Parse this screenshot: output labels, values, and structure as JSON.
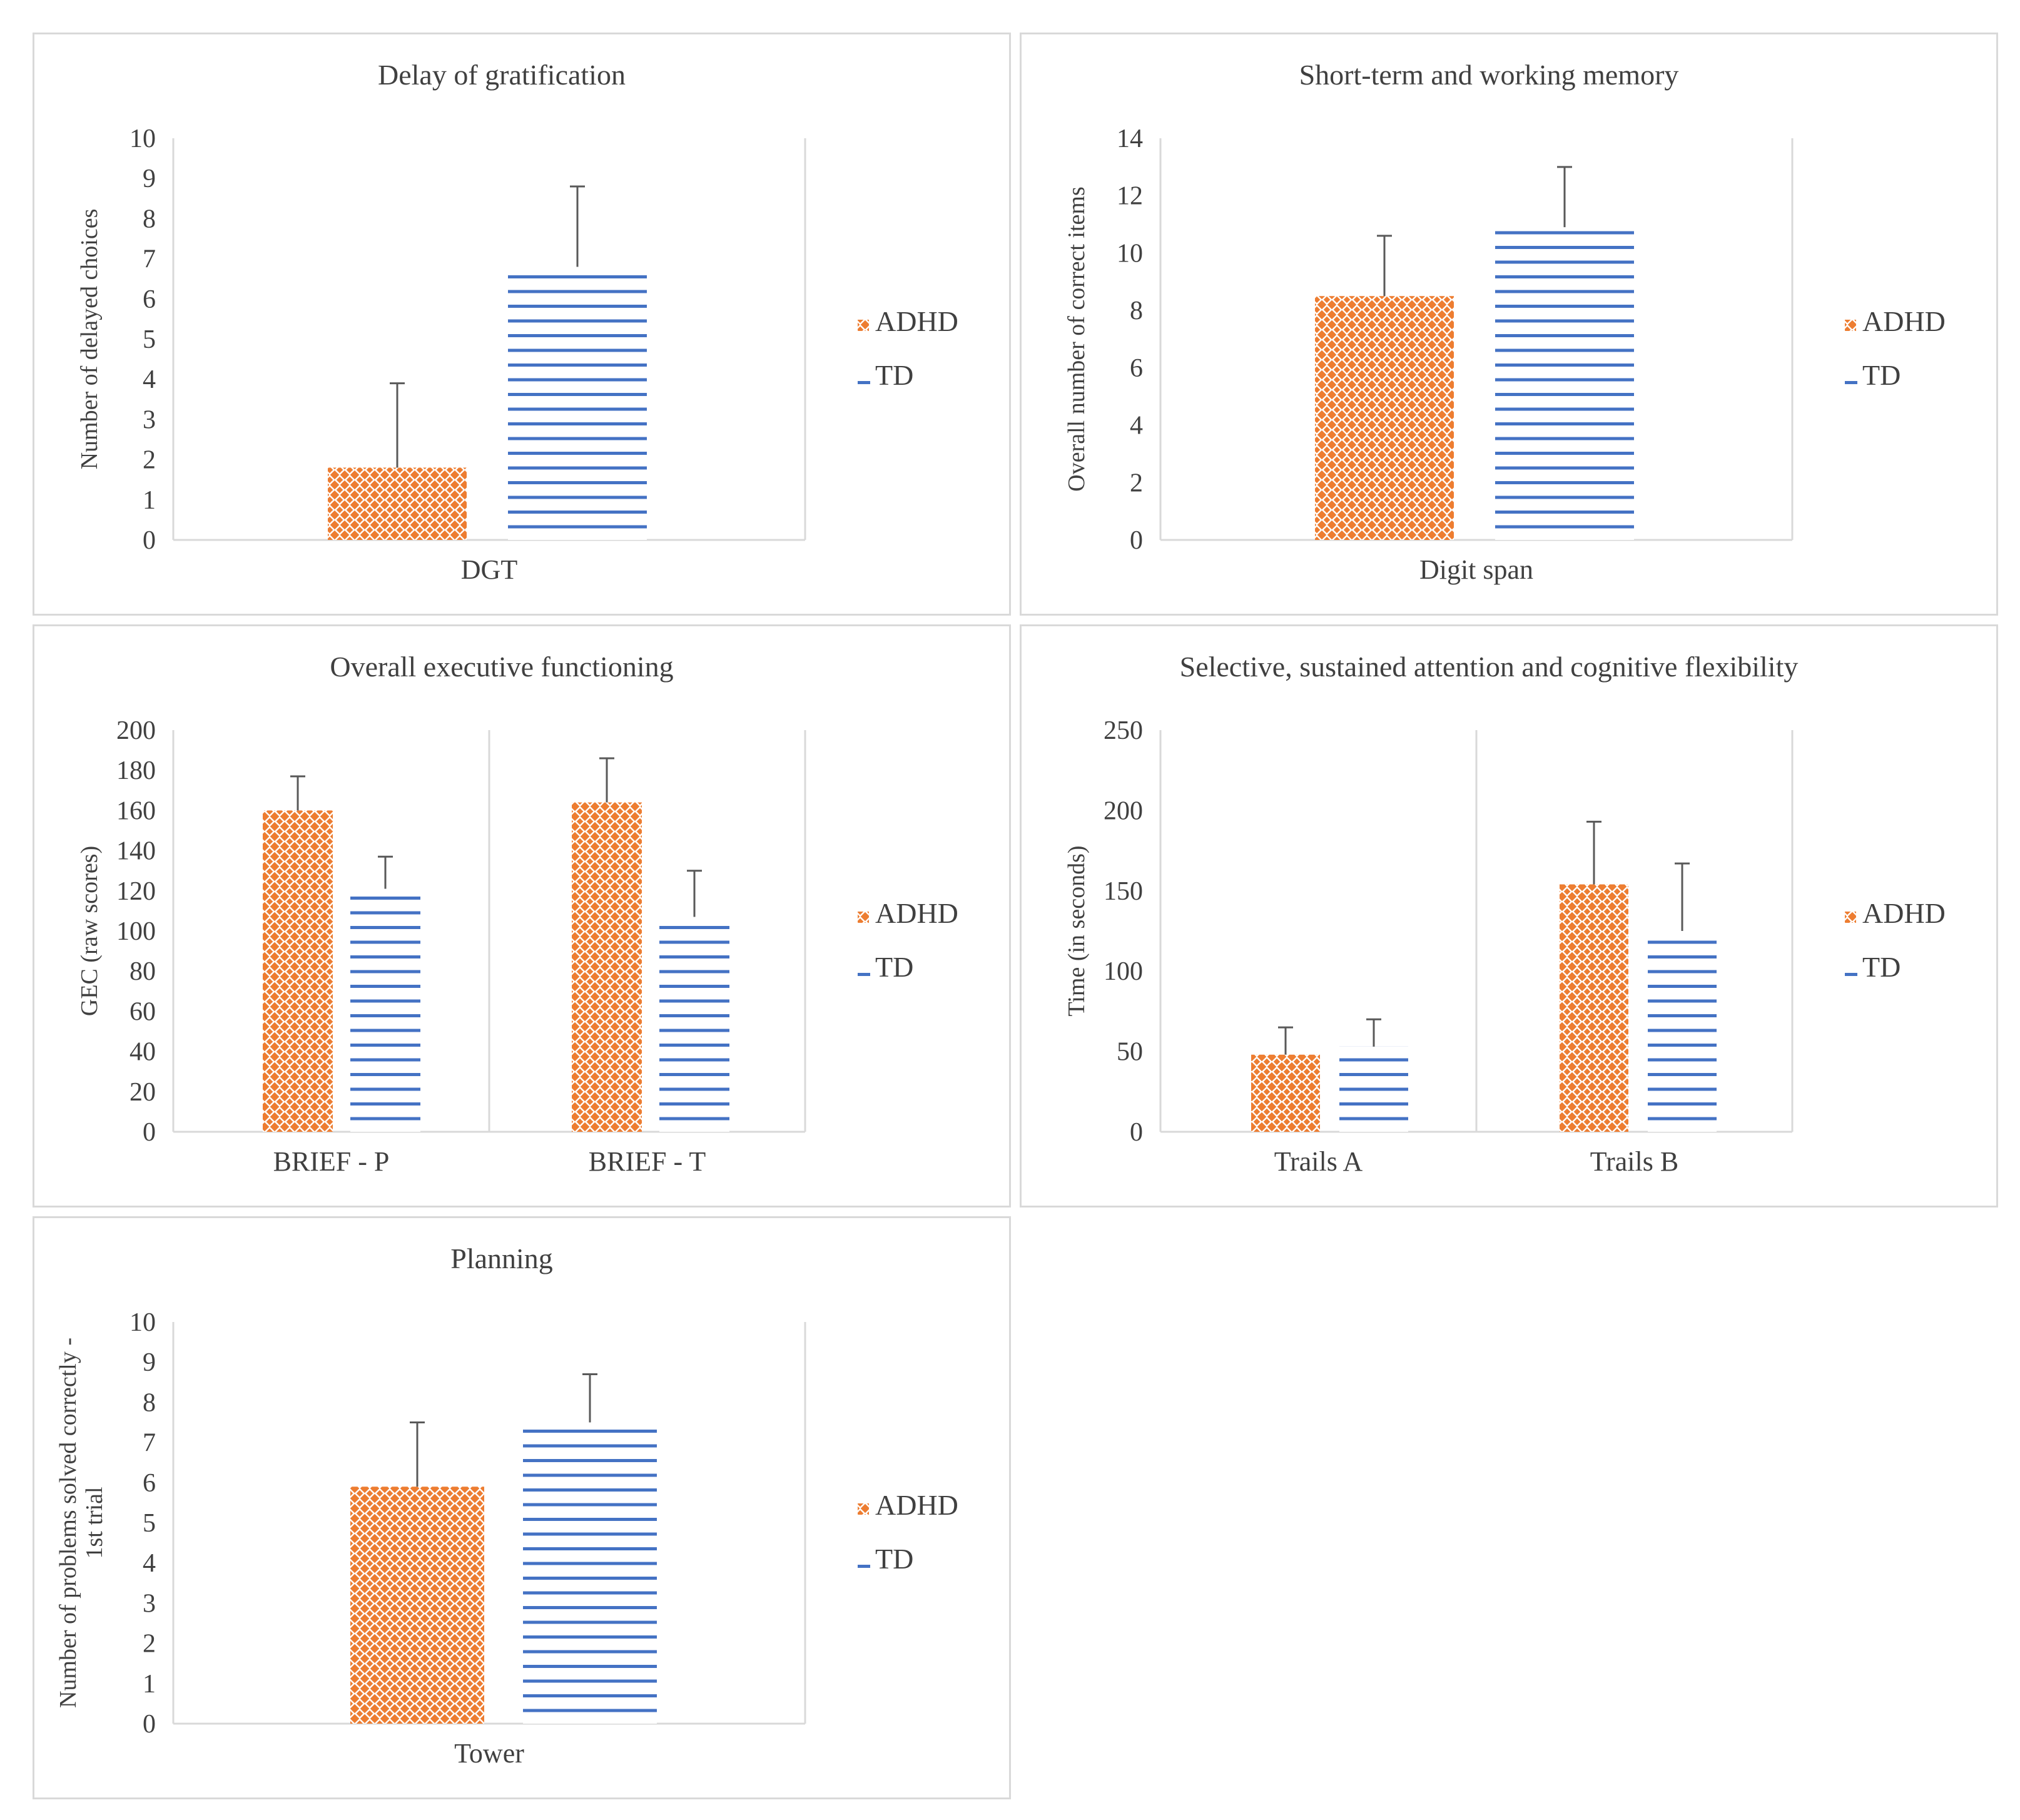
{
  "legend": {
    "adhd_label": "ADHD",
    "td_label": "TD",
    "adhd_color": "#ed7d31",
    "td_color": "#4472c4"
  },
  "chart_data": [
    {
      "type": "bar",
      "title": "Delay of gratification",
      "xlabel": "",
      "ylabel": "Number of delayed choices",
      "categories": [
        "DGT"
      ],
      "ylim": [
        0,
        10
      ],
      "yticks": [
        0,
        1,
        2,
        3,
        4,
        5,
        6,
        7,
        8,
        9,
        10
      ],
      "series": [
        {
          "name": "ADHD",
          "values": [
            1.8
          ],
          "error": [
            2.1
          ]
        },
        {
          "name": "TD",
          "values": [
            6.8
          ],
          "error": [
            2.0
          ]
        }
      ]
    },
    {
      "type": "bar",
      "title": "Short-term and working memory",
      "xlabel": "",
      "ylabel": "Overall number of correct items",
      "categories": [
        "Digit span"
      ],
      "ylim": [
        0,
        14
      ],
      "yticks": [
        0,
        2,
        4,
        6,
        8,
        10,
        12,
        14
      ],
      "series": [
        {
          "name": "ADHD",
          "values": [
            8.5
          ],
          "error": [
            2.1
          ]
        },
        {
          "name": "TD",
          "values": [
            10.9
          ],
          "error": [
            2.1
          ]
        }
      ]
    },
    {
      "type": "bar",
      "title": "Overall executive functioning",
      "xlabel": "",
      "ylabel": "GEC (raw scores)",
      "categories": [
        "BRIEF - P",
        "BRIEF - T"
      ],
      "ylim": [
        0,
        200
      ],
      "yticks": [
        0,
        20,
        40,
        60,
        80,
        100,
        120,
        140,
        160,
        180,
        200
      ],
      "series": [
        {
          "name": "ADHD",
          "values": [
            160,
            164
          ],
          "error": [
            17,
            22
          ]
        },
        {
          "name": "TD",
          "values": [
            121,
            107
          ],
          "error": [
            16,
            23
          ]
        }
      ]
    },
    {
      "type": "bar",
      "title": "Selective, sustained attention and cognitive flexibility",
      "xlabel": "",
      "ylabel": "Time (in seconds)",
      "categories": [
        "Trails A",
        "Trails B"
      ],
      "ylim": [
        0,
        250
      ],
      "yticks": [
        0,
        50,
        100,
        150,
        200,
        250
      ],
      "series": [
        {
          "name": "ADHD",
          "values": [
            48,
            154
          ],
          "error": [
            17,
            39
          ]
        },
        {
          "name": "TD",
          "values": [
            53,
            125
          ],
          "error": [
            17,
            42
          ]
        }
      ]
    },
    {
      "type": "bar",
      "title": "Planning",
      "xlabel": "",
      "ylabel": [
        "Number of problems solved correctly -",
        "1st trial"
      ],
      "categories": [
        "Tower"
      ],
      "ylim": [
        0,
        10
      ],
      "yticks": [
        0,
        1,
        2,
        3,
        4,
        5,
        6,
        7,
        8,
        9,
        10
      ],
      "series": [
        {
          "name": "ADHD",
          "values": [
            5.9
          ],
          "error": [
            1.6
          ]
        },
        {
          "name": "TD",
          "values": [
            7.5
          ],
          "error": [
            1.2
          ]
        }
      ]
    }
  ]
}
